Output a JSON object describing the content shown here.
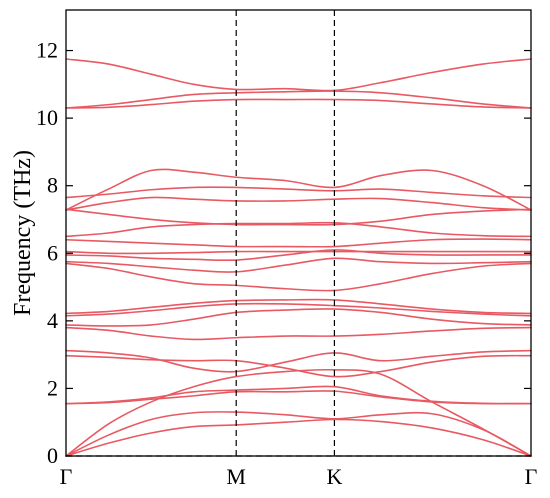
{
  "chart_data": {
    "type": "line",
    "title": "",
    "xlabel": "",
    "ylabel": "Frequency (THz)",
    "ylim": [
      0,
      13.2
    ],
    "yticks": [
      0,
      2,
      4,
      6,
      8,
      10,
      12
    ],
    "high_symmetry_points": [
      {
        "label": "Γ",
        "k": 0
      },
      {
        "label": "M",
        "k": 1
      },
      {
        "label": "K",
        "k": 1.577
      },
      {
        "label": "Γ",
        "k": 2.732
      }
    ],
    "xlim": [
      0,
      2.732
    ],
    "band_color": "#e85a63",
    "zero_line": {
      "y": 0,
      "style": "dashed"
    },
    "grid": false,
    "series": [
      {
        "points": [
          [
            0,
            0
          ],
          [
            0.25,
            0.38
          ],
          [
            0.5,
            0.68
          ],
          [
            0.75,
            0.87
          ],
          [
            1,
            0.92
          ],
          [
            1.29,
            1.0
          ],
          [
            1.577,
            1.08
          ],
          [
            1.85,
            1.02
          ],
          [
            2.15,
            0.83
          ],
          [
            2.45,
            0.48
          ],
          [
            2.732,
            0
          ]
        ]
      },
      {
        "points": [
          [
            0,
            0
          ],
          [
            0.25,
            0.62
          ],
          [
            0.5,
            1.08
          ],
          [
            0.75,
            1.28
          ],
          [
            1,
            1.3
          ],
          [
            1.29,
            1.22
          ],
          [
            1.577,
            1.1
          ],
          [
            1.85,
            1.22
          ],
          [
            2.15,
            1.25
          ],
          [
            2.45,
            0.78
          ],
          [
            2.732,
            0
          ]
        ]
      },
      {
        "points": [
          [
            0,
            0
          ],
          [
            0.25,
            0.95
          ],
          [
            0.5,
            1.6
          ],
          [
            0.75,
            2.05
          ],
          [
            1,
            2.35
          ],
          [
            1.29,
            2.5
          ],
          [
            1.577,
            2.55
          ],
          [
            1.85,
            2.42
          ],
          [
            2.15,
            1.6
          ],
          [
            2.45,
            0.8
          ],
          [
            2.732,
            0
          ]
        ]
      },
      {
        "points": [
          [
            0,
            1.55
          ],
          [
            0.25,
            1.58
          ],
          [
            0.5,
            1.68
          ],
          [
            0.75,
            1.78
          ],
          [
            1,
            1.9
          ],
          [
            1.29,
            1.9
          ],
          [
            1.577,
            1.92
          ],
          [
            1.85,
            1.75
          ],
          [
            2.15,
            1.6
          ],
          [
            2.45,
            1.55
          ],
          [
            2.732,
            1.55
          ]
        ]
      },
      {
        "points": [
          [
            0,
            1.55
          ],
          [
            0.25,
            1.6
          ],
          [
            0.5,
            1.72
          ],
          [
            0.75,
            1.9
          ],
          [
            1,
            1.95
          ],
          [
            1.29,
            2.0
          ],
          [
            1.577,
            2.05
          ],
          [
            1.85,
            1.78
          ],
          [
            2.15,
            1.62
          ],
          [
            2.45,
            1.56
          ],
          [
            2.732,
            1.55
          ]
        ]
      },
      {
        "points": [
          [
            0,
            2.97
          ],
          [
            0.25,
            2.92
          ],
          [
            0.5,
            2.85
          ],
          [
            0.75,
            2.82
          ],
          [
            1,
            2.82
          ],
          [
            1.29,
            2.6
          ],
          [
            1.577,
            2.35
          ],
          [
            1.85,
            2.5
          ],
          [
            2.15,
            2.78
          ],
          [
            2.45,
            2.95
          ],
          [
            2.732,
            2.97
          ]
        ]
      },
      {
        "points": [
          [
            0,
            3.12
          ],
          [
            0.25,
            3.05
          ],
          [
            0.5,
            2.9
          ],
          [
            0.75,
            2.6
          ],
          [
            1,
            2.5
          ],
          [
            1.29,
            2.78
          ],
          [
            1.577,
            3.05
          ],
          [
            1.85,
            2.82
          ],
          [
            2.15,
            2.95
          ],
          [
            2.45,
            3.08
          ],
          [
            2.732,
            3.12
          ]
        ]
      },
      {
        "points": [
          [
            0,
            3.8
          ],
          [
            0.25,
            3.72
          ],
          [
            0.5,
            3.55
          ],
          [
            0.75,
            3.45
          ],
          [
            1,
            3.5
          ],
          [
            1.29,
            3.55
          ],
          [
            1.577,
            3.55
          ],
          [
            1.85,
            3.6
          ],
          [
            2.15,
            3.7
          ],
          [
            2.45,
            3.78
          ],
          [
            2.732,
            3.8
          ]
        ]
      },
      {
        "points": [
          [
            0,
            3.88
          ],
          [
            0.25,
            3.85
          ],
          [
            0.5,
            3.88
          ],
          [
            0.75,
            4.05
          ],
          [
            1,
            4.25
          ],
          [
            1.29,
            4.32
          ],
          [
            1.577,
            4.35
          ],
          [
            1.85,
            4.25
          ],
          [
            2.15,
            4.05
          ],
          [
            2.45,
            3.92
          ],
          [
            2.732,
            3.88
          ]
        ]
      },
      {
        "points": [
          [
            0,
            4.15
          ],
          [
            0.25,
            4.2
          ],
          [
            0.5,
            4.3
          ],
          [
            0.75,
            4.42
          ],
          [
            1,
            4.5
          ],
          [
            1.29,
            4.5
          ],
          [
            1.577,
            4.45
          ],
          [
            1.85,
            4.38
          ],
          [
            2.15,
            4.28
          ],
          [
            2.45,
            4.2
          ],
          [
            2.732,
            4.15
          ]
        ]
      },
      {
        "points": [
          [
            0,
            4.22
          ],
          [
            0.25,
            4.28
          ],
          [
            0.5,
            4.4
          ],
          [
            0.75,
            4.52
          ],
          [
            1,
            4.6
          ],
          [
            1.29,
            4.62
          ],
          [
            1.577,
            4.62
          ],
          [
            1.85,
            4.5
          ],
          [
            2.15,
            4.35
          ],
          [
            2.45,
            4.25
          ],
          [
            2.732,
            4.22
          ]
        ]
      },
      {
        "points": [
          [
            0,
            5.7
          ],
          [
            0.25,
            5.55
          ],
          [
            0.5,
            5.3
          ],
          [
            0.75,
            5.1
          ],
          [
            1,
            5.05
          ],
          [
            1.29,
            4.95
          ],
          [
            1.577,
            4.9
          ],
          [
            1.85,
            5.1
          ],
          [
            2.15,
            5.4
          ],
          [
            2.45,
            5.62
          ],
          [
            2.732,
            5.7
          ]
        ]
      },
      {
        "points": [
          [
            0,
            5.75
          ],
          [
            0.25,
            5.7
          ],
          [
            0.5,
            5.6
          ],
          [
            0.75,
            5.5
          ],
          [
            1,
            5.45
          ],
          [
            1.29,
            5.65
          ],
          [
            1.577,
            5.85
          ],
          [
            1.85,
            5.75
          ],
          [
            2.15,
            5.7
          ],
          [
            2.45,
            5.72
          ],
          [
            2.732,
            5.75
          ]
        ]
      },
      {
        "points": [
          [
            0,
            5.95
          ],
          [
            0.25,
            5.92
          ],
          [
            0.5,
            5.85
          ],
          [
            0.75,
            5.82
          ],
          [
            1,
            5.8
          ],
          [
            1.29,
            5.95
          ],
          [
            1.577,
            6.1
          ],
          [
            1.85,
            6.0
          ],
          [
            2.15,
            5.95
          ],
          [
            2.45,
            5.95
          ],
          [
            2.732,
            5.95
          ]
        ]
      },
      {
        "points": [
          [
            0,
            6.05
          ],
          [
            0.25,
            6.0
          ],
          [
            0.5,
            6.0
          ],
          [
            0.75,
            6.02
          ],
          [
            1,
            6.05
          ],
          [
            1.29,
            6.05
          ],
          [
            1.577,
            6.05
          ],
          [
            1.85,
            6.05
          ],
          [
            2.15,
            6.05
          ],
          [
            2.45,
            6.05
          ],
          [
            2.732,
            6.05
          ]
        ]
      },
      {
        "points": [
          [
            0,
            6.4
          ],
          [
            0.25,
            6.35
          ],
          [
            0.5,
            6.3
          ],
          [
            0.75,
            6.25
          ],
          [
            1,
            6.2
          ],
          [
            1.29,
            6.2
          ],
          [
            1.577,
            6.2
          ],
          [
            1.85,
            6.3
          ],
          [
            2.15,
            6.4
          ],
          [
            2.45,
            6.42
          ],
          [
            2.732,
            6.4
          ]
        ]
      },
      {
        "points": [
          [
            0,
            6.5
          ],
          [
            0.25,
            6.6
          ],
          [
            0.5,
            6.78
          ],
          [
            0.75,
            6.85
          ],
          [
            1,
            6.88
          ],
          [
            1.29,
            6.88
          ],
          [
            1.577,
            6.9
          ],
          [
            1.85,
            6.78
          ],
          [
            2.15,
            6.6
          ],
          [
            2.45,
            6.52
          ],
          [
            2.732,
            6.5
          ]
        ]
      },
      {
        "points": [
          [
            0,
            7.3
          ],
          [
            0.25,
            7.15
          ],
          [
            0.5,
            7.0
          ],
          [
            0.75,
            6.9
          ],
          [
            1,
            6.85
          ],
          [
            1.29,
            6.85
          ],
          [
            1.577,
            6.85
          ],
          [
            1.85,
            6.95
          ],
          [
            2.15,
            7.15
          ],
          [
            2.45,
            7.25
          ],
          [
            2.732,
            7.3
          ]
        ]
      },
      {
        "points": [
          [
            0,
            7.28
          ],
          [
            0.25,
            7.5
          ],
          [
            0.5,
            7.65
          ],
          [
            0.75,
            7.6
          ],
          [
            1,
            7.55
          ],
          [
            1.29,
            7.55
          ],
          [
            1.577,
            7.6
          ],
          [
            1.85,
            7.62
          ],
          [
            2.15,
            7.5
          ],
          [
            2.45,
            7.35
          ],
          [
            2.732,
            7.28
          ]
        ]
      },
      {
        "points": [
          [
            0,
            7.65
          ],
          [
            0.25,
            7.75
          ],
          [
            0.5,
            7.88
          ],
          [
            0.75,
            7.95
          ],
          [
            1,
            7.95
          ],
          [
            1.29,
            7.9
          ],
          [
            1.577,
            7.85
          ],
          [
            1.85,
            7.9
          ],
          [
            2.15,
            7.8
          ],
          [
            2.45,
            7.7
          ],
          [
            2.732,
            7.65
          ]
        ]
      },
      {
        "points": [
          [
            0,
            7.28
          ],
          [
            0.25,
            7.9
          ],
          [
            0.5,
            8.45
          ],
          [
            0.75,
            8.4
          ],
          [
            1,
            8.25
          ],
          [
            1.29,
            8.15
          ],
          [
            1.577,
            7.95
          ],
          [
            1.85,
            8.3
          ],
          [
            2.15,
            8.45
          ],
          [
            2.45,
            8.0
          ],
          [
            2.732,
            7.28
          ]
        ]
      },
      {
        "points": [
          [
            0,
            10.3
          ],
          [
            0.25,
            10.32
          ],
          [
            0.5,
            10.4
          ],
          [
            0.75,
            10.5
          ],
          [
            1,
            10.55
          ],
          [
            1.29,
            10.55
          ],
          [
            1.577,
            10.55
          ],
          [
            1.85,
            10.52
          ],
          [
            2.15,
            10.42
          ],
          [
            2.45,
            10.33
          ],
          [
            2.732,
            10.3
          ]
        ]
      },
      {
        "points": [
          [
            0,
            10.3
          ],
          [
            0.25,
            10.4
          ],
          [
            0.5,
            10.55
          ],
          [
            0.75,
            10.7
          ],
          [
            1,
            10.75
          ],
          [
            1.29,
            10.78
          ],
          [
            1.577,
            10.8
          ],
          [
            1.85,
            10.75
          ],
          [
            2.15,
            10.6
          ],
          [
            2.45,
            10.42
          ],
          [
            2.732,
            10.3
          ]
        ]
      },
      {
        "points": [
          [
            0,
            11.75
          ],
          [
            0.25,
            11.6
          ],
          [
            0.5,
            11.3
          ],
          [
            0.75,
            11.0
          ],
          [
            1,
            10.85
          ],
          [
            1.29,
            10.87
          ],
          [
            1.577,
            10.82
          ],
          [
            1.85,
            11.05
          ],
          [
            2.15,
            11.35
          ],
          [
            2.45,
            11.6
          ],
          [
            2.732,
            11.75
          ]
        ]
      }
    ]
  }
}
